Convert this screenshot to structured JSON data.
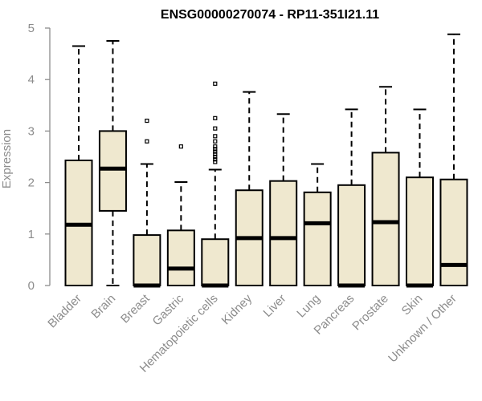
{
  "chart_data": {
    "type": "boxplot",
    "title": "ENSG00000270074 - RP11-351I21.11",
    "ylabel": "Expression",
    "ylim": [
      0,
      5
    ],
    "yticks": [
      0,
      1,
      2,
      3,
      4,
      5
    ],
    "grid": false,
    "box_fill": "#efe8cf",
    "stroke": "#000000",
    "axis_color": "#8c8c8c",
    "categories": [
      "Bladder",
      "Brain",
      "Breast",
      "Gastric",
      "Hematopoietic cells",
      "Kidney",
      "Liver",
      "Lung",
      "Pancreas",
      "Prostate",
      "Skin",
      "Unknown / Other"
    ],
    "boxes": [
      {
        "category": "Bladder",
        "min": 0,
        "q1": 0,
        "median": 1.18,
        "q3": 2.43,
        "max": 4.65,
        "outliers": []
      },
      {
        "category": "Brain",
        "min": 0,
        "q1": 1.45,
        "median": 2.27,
        "q3": 3.0,
        "max": 4.75,
        "outliers": []
      },
      {
        "category": "Breast",
        "min": 0,
        "q1": 0,
        "median": 0,
        "q3": 0.98,
        "max": 2.36,
        "outliers": [
          2.8,
          3.2
        ]
      },
      {
        "category": "Gastric",
        "min": 0,
        "q1": 0,
        "median": 0.33,
        "q3": 1.07,
        "max": 2.01,
        "outliers": [
          2.7
        ]
      },
      {
        "category": "Hematopoietic cells",
        "min": 0,
        "q1": 0,
        "median": 0,
        "q3": 0.9,
        "max": 2.25,
        "outliers": [
          2.4,
          2.45,
          2.5,
          2.55,
          2.6,
          2.65,
          2.7,
          2.8,
          2.9,
          3.05,
          3.25,
          3.92
        ]
      },
      {
        "category": "Kidney",
        "min": 0,
        "q1": 0,
        "median": 0.92,
        "q3": 1.85,
        "max": 3.76,
        "outliers": []
      },
      {
        "category": "Liver",
        "min": 0,
        "q1": 0,
        "median": 0.92,
        "q3": 2.03,
        "max": 3.33,
        "outliers": []
      },
      {
        "category": "Lung",
        "min": 0,
        "q1": 0,
        "median": 1.21,
        "q3": 1.81,
        "max": 2.36,
        "outliers": []
      },
      {
        "category": "Pancreas",
        "min": 0,
        "q1": 0,
        "median": 0,
        "q3": 1.95,
        "max": 3.42,
        "outliers": []
      },
      {
        "category": "Prostate",
        "min": 0,
        "q1": 0,
        "median": 1.23,
        "q3": 2.58,
        "max": 3.86,
        "outliers": []
      },
      {
        "category": "Skin",
        "min": 0,
        "q1": 0,
        "median": 0,
        "q3": 2.1,
        "max": 3.42,
        "outliers": []
      },
      {
        "category": "Unknown / Other",
        "min": 0,
        "q1": 0,
        "median": 0.4,
        "q3": 2.06,
        "max": 4.88,
        "outliers": []
      }
    ]
  }
}
